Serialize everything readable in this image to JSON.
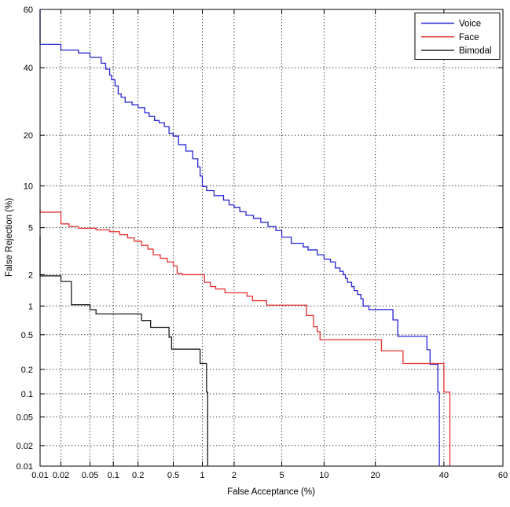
{
  "figure": {
    "background": "#ffffff",
    "frame_color": "#000000",
    "grid_color": "#3f3f3f",
    "grid_style": "dotted"
  },
  "legend": {
    "position": "top-right",
    "entries": [
      {
        "label": "Voice",
        "color": "#2525d5"
      },
      {
        "label": "Face",
        "color": "#e83030"
      },
      {
        "label": "Bimodal",
        "color": "#1c1c1c"
      }
    ]
  },
  "chart_data": {
    "type": "line",
    "subtype": "DET curve (stepwise, empirical)",
    "title": "",
    "xlabel": "False Acceptance (%)",
    "ylabel": "False Rejection (%)",
    "axis_scale": "probit (normal-deviate) scale on both axes",
    "xlim": [
      0.01,
      60
    ],
    "ylim": [
      0.01,
      60
    ],
    "xticks": [
      0.01,
      0.02,
      0.05,
      0.1,
      0.2,
      0.5,
      1,
      2,
      5,
      10,
      20,
      40,
      60
    ],
    "xtick_labels": [
      "0.01",
      "0.02",
      "0.05",
      "0.1",
      "0.2",
      "0.5",
      "1",
      "2",
      "5",
      "10",
      "20",
      "40",
      "60"
    ],
    "yticks": [
      60,
      40,
      20,
      10,
      5,
      2,
      1,
      0.5,
      0.2,
      0.1,
      0.05,
      0.02,
      0.01
    ],
    "ytick_labels": [
      "60",
      "40",
      "20",
      "10",
      "5",
      "2",
      "1",
      "0.5",
      "0.2",
      "0.1",
      "0.05",
      "0.02",
      "0.01"
    ],
    "grid": "dotted gridlines at every labeled tick, both axes",
    "legend_position": "top-right inside plot box",
    "series": [
      {
        "name": "Voice",
        "color": "#2525d5",
        "points": [
          [
            0.01,
            60
          ],
          [
            0.01,
            48
          ],
          [
            0.02,
            48
          ],
          [
            0.02,
            46
          ],
          [
            0.035,
            46
          ],
          [
            0.035,
            45
          ],
          [
            0.05,
            45
          ],
          [
            0.05,
            43.5
          ],
          [
            0.07,
            43.5
          ],
          [
            0.07,
            41.5
          ],
          [
            0.08,
            41.5
          ],
          [
            0.08,
            39.5
          ],
          [
            0.09,
            39.5
          ],
          [
            0.09,
            37.5
          ],
          [
            0.095,
            37.5
          ],
          [
            0.095,
            36
          ],
          [
            0.105,
            36
          ],
          [
            0.105,
            34
          ],
          [
            0.115,
            34
          ],
          [
            0.115,
            31.5
          ],
          [
            0.125,
            31.5
          ],
          [
            0.125,
            30.5
          ],
          [
            0.14,
            30.5
          ],
          [
            0.14,
            29
          ],
          [
            0.17,
            29
          ],
          [
            0.17,
            28.2
          ],
          [
            0.2,
            28.2
          ],
          [
            0.2,
            27.4
          ],
          [
            0.24,
            27.4
          ],
          [
            0.24,
            25.9
          ],
          [
            0.27,
            25.9
          ],
          [
            0.27,
            24.9
          ],
          [
            0.31,
            24.9
          ],
          [
            0.31,
            23.8
          ],
          [
            0.35,
            23.8
          ],
          [
            0.35,
            23.2
          ],
          [
            0.4,
            23.2
          ],
          [
            0.4,
            22.2
          ],
          [
            0.45,
            22.2
          ],
          [
            0.45,
            20.5
          ],
          [
            0.5,
            20.5
          ],
          [
            0.5,
            19.8
          ],
          [
            0.57,
            19.8
          ],
          [
            0.57,
            17.8
          ],
          [
            0.68,
            17.8
          ],
          [
            0.68,
            16.4
          ],
          [
            0.8,
            16.4
          ],
          [
            0.8,
            14.8
          ],
          [
            0.9,
            14.8
          ],
          [
            0.9,
            13.2
          ],
          [
            0.95,
            13.2
          ],
          [
            0.95,
            11.6
          ],
          [
            1.0,
            11.6
          ],
          [
            1.0,
            9.9
          ],
          [
            1.1,
            9.9
          ],
          [
            1.1,
            9.3
          ],
          [
            1.3,
            9.3
          ],
          [
            1.3,
            8.6
          ],
          [
            1.6,
            8.6
          ],
          [
            1.6,
            8.0
          ],
          [
            1.8,
            8.0
          ],
          [
            1.8,
            7.4
          ],
          [
            2.0,
            7.4
          ],
          [
            2.0,
            7.1
          ],
          [
            2.25,
            7.1
          ],
          [
            2.25,
            6.6
          ],
          [
            2.55,
            6.6
          ],
          [
            2.55,
            6.2
          ],
          [
            2.95,
            6.2
          ],
          [
            2.95,
            5.9
          ],
          [
            3.4,
            5.9
          ],
          [
            3.4,
            5.5
          ],
          [
            3.9,
            5.5
          ],
          [
            3.9,
            5.1
          ],
          [
            4.5,
            5.1
          ],
          [
            4.5,
            4.75
          ],
          [
            5.0,
            4.75
          ],
          [
            5.0,
            4.2
          ],
          [
            5.9,
            4.2
          ],
          [
            5.9,
            3.75
          ],
          [
            7.2,
            3.75
          ],
          [
            7.2,
            3.5
          ],
          [
            7.8,
            3.5
          ],
          [
            7.8,
            3.3
          ],
          [
            9.0,
            3.3
          ],
          [
            9.0,
            3.0
          ],
          [
            10.0,
            3.0
          ],
          [
            10.0,
            2.75
          ],
          [
            11.0,
            2.75
          ],
          [
            11.0,
            2.6
          ],
          [
            11.8,
            2.6
          ],
          [
            11.8,
            2.3
          ],
          [
            12.6,
            2.3
          ],
          [
            12.6,
            2.15
          ],
          [
            13.2,
            2.15
          ],
          [
            13.2,
            2.0
          ],
          [
            13.6,
            2.0
          ],
          [
            13.6,
            1.85
          ],
          [
            14.0,
            1.85
          ],
          [
            14.0,
            1.7
          ],
          [
            14.8,
            1.7
          ],
          [
            14.8,
            1.55
          ],
          [
            15.3,
            1.55
          ],
          [
            15.3,
            1.42
          ],
          [
            16.0,
            1.42
          ],
          [
            16.0,
            1.3
          ],
          [
            16.7,
            1.3
          ],
          [
            16.7,
            1.18
          ],
          [
            17.2,
            1.18
          ],
          [
            17.2,
            1.0
          ],
          [
            18.5,
            1.0
          ],
          [
            18.5,
            0.92
          ],
          [
            24.5,
            0.92
          ],
          [
            24.5,
            0.72
          ],
          [
            25.8,
            0.72
          ],
          [
            25.8,
            0.48
          ],
          [
            34.5,
            0.48
          ],
          [
            34.5,
            0.34
          ],
          [
            35.5,
            0.34
          ],
          [
            35.5,
            0.23
          ],
          [
            38.0,
            0.23
          ],
          [
            38.0,
            0.105
          ],
          [
            38.5,
            0.105
          ],
          [
            38.5,
            0.01
          ]
        ]
      },
      {
        "name": "Face",
        "color": "#e83030",
        "points": [
          [
            0.01,
            6.9
          ],
          [
            0.01,
            6.55
          ],
          [
            0.02,
            6.55
          ],
          [
            0.02,
            5.35
          ],
          [
            0.026,
            5.35
          ],
          [
            0.026,
            5.1
          ],
          [
            0.035,
            5.1
          ],
          [
            0.035,
            4.95
          ],
          [
            0.06,
            4.95
          ],
          [
            0.06,
            4.8
          ],
          [
            0.09,
            4.8
          ],
          [
            0.09,
            4.65
          ],
          [
            0.12,
            4.65
          ],
          [
            0.12,
            4.4
          ],
          [
            0.15,
            4.4
          ],
          [
            0.15,
            4.15
          ],
          [
            0.18,
            4.15
          ],
          [
            0.18,
            3.9
          ],
          [
            0.22,
            3.9
          ],
          [
            0.22,
            3.6
          ],
          [
            0.26,
            3.6
          ],
          [
            0.26,
            3.35
          ],
          [
            0.3,
            3.35
          ],
          [
            0.3,
            3.0
          ],
          [
            0.36,
            3.0
          ],
          [
            0.36,
            2.8
          ],
          [
            0.43,
            2.8
          ],
          [
            0.43,
            2.6
          ],
          [
            0.5,
            2.6
          ],
          [
            0.5,
            2.4
          ],
          [
            0.55,
            2.4
          ],
          [
            0.55,
            2.05
          ],
          [
            0.62,
            2.05
          ],
          [
            0.62,
            2.0
          ],
          [
            1.05,
            2.0
          ],
          [
            1.05,
            1.7
          ],
          [
            1.2,
            1.7
          ],
          [
            1.2,
            1.55
          ],
          [
            1.35,
            1.55
          ],
          [
            1.35,
            1.47
          ],
          [
            1.65,
            1.47
          ],
          [
            1.65,
            1.35
          ],
          [
            2.6,
            1.35
          ],
          [
            2.6,
            1.25
          ],
          [
            2.9,
            1.25
          ],
          [
            2.9,
            1.13
          ],
          [
            3.8,
            1.13
          ],
          [
            3.8,
            1.02
          ],
          [
            7.6,
            1.02
          ],
          [
            7.6,
            0.8
          ],
          [
            8.5,
            0.8
          ],
          [
            8.5,
            0.61
          ],
          [
            9.0,
            0.61
          ],
          [
            9.0,
            0.54
          ],
          [
            9.4,
            0.54
          ],
          [
            9.4,
            0.44
          ],
          [
            21.5,
            0.44
          ],
          [
            21.5,
            0.33
          ],
          [
            27.3,
            0.33
          ],
          [
            27.3,
            0.235
          ],
          [
            40.0,
            0.235
          ],
          [
            40.0,
            0.105
          ],
          [
            42.0,
            0.105
          ],
          [
            42.0,
            0.01
          ]
        ]
      },
      {
        "name": "Bimodal",
        "color": "#1c1c1c",
        "points": [
          [
            0.01,
            4.3
          ],
          [
            0.01,
            1.95
          ],
          [
            0.02,
            1.95
          ],
          [
            0.02,
            1.73
          ],
          [
            0.028,
            1.73
          ],
          [
            0.028,
            1.03
          ],
          [
            0.05,
            1.03
          ],
          [
            0.05,
            0.92
          ],
          [
            0.06,
            0.92
          ],
          [
            0.06,
            0.83
          ],
          [
            0.22,
            0.83
          ],
          [
            0.22,
            0.71
          ],
          [
            0.28,
            0.71
          ],
          [
            0.28,
            0.6
          ],
          [
            0.45,
            0.6
          ],
          [
            0.45,
            0.47
          ],
          [
            0.48,
            0.47
          ],
          [
            0.48,
            0.345
          ],
          [
            0.95,
            0.345
          ],
          [
            0.95,
            0.235
          ],
          [
            1.1,
            0.235
          ],
          [
            1.1,
            0.105
          ],
          [
            1.13,
            0.105
          ],
          [
            1.13,
            0.01
          ]
        ]
      }
    ]
  }
}
